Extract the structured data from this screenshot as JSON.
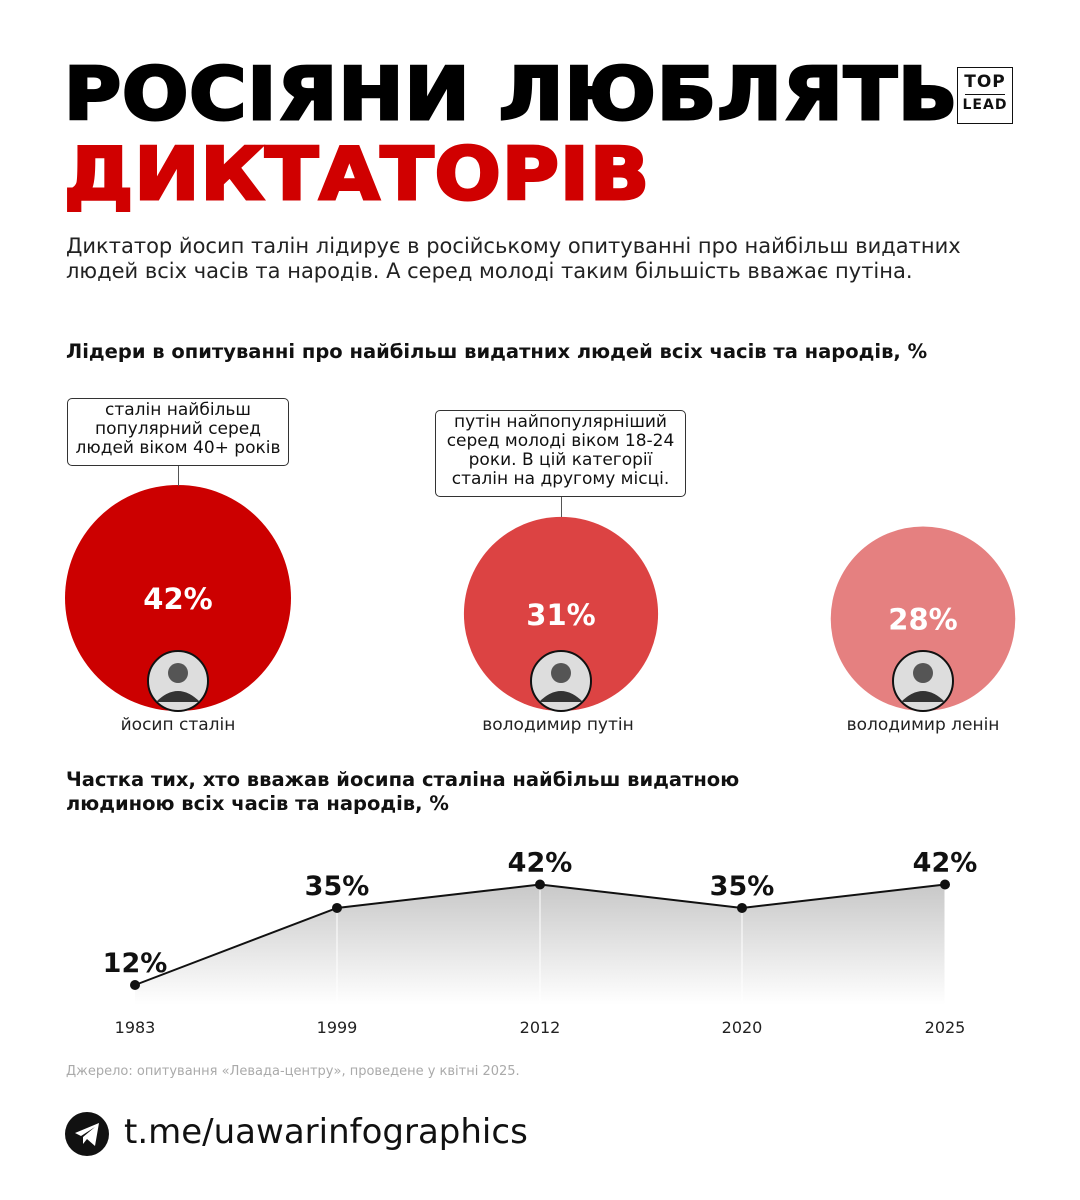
{
  "header": {
    "title_line1": "РОСІЯНИ ЛЮБЛЯТЬ",
    "title_line2": "ДИКТАТОРІВ",
    "logo_top": "TOP",
    "logo_bottom": "LEAD"
  },
  "intro": "Диктатор йосип  талін лідирує в російському опитуванні про найбільш видатних людей всіх часів та народів. А серед молоді таким більшість вважає путіна.",
  "colors": {
    "accent": "#d00000",
    "stalin": "#cc0000",
    "putin": "#dc4343",
    "lenin": "#e58080",
    "area_top": "#c8c8c8"
  },
  "chart_data": [
    {
      "type": "bubble",
      "title": "Лідери в опитуванні про найбільш видатних людей всіх часів та народів, %",
      "categories": [
        "йосип сталін",
        "володимир путін",
        "володимир ленін"
      ],
      "values": [
        42,
        31,
        28
      ],
      "labels": [
        "42%",
        "31%",
        "28%"
      ],
      "annotations": [
        {
          "target": "йосип сталін",
          "text": "сталін найбільш популярний серед людей віком 40+ років"
        },
        {
          "target": "володимир путін",
          "text": "путін найпопулярніший серед молоді віком 18-24 роки. В цій категорії сталін на другому місці."
        }
      ]
    },
    {
      "type": "area",
      "title": "Частка тих, хто вважав йосипа сталіна найбільш видатною людиною всіх часів та народів, %",
      "x": [
        "1983",
        "1999",
        "2012",
        "2020",
        "2025"
      ],
      "values": [
        12,
        35,
        42,
        35,
        42
      ],
      "labels": [
        "12%",
        "35%",
        "42%",
        "35%",
        "42%"
      ],
      "grid": false
    }
  ],
  "source": "Джерело: опитування «Левада-центру», проведене у квітні 2025.",
  "footer": {
    "icon": "telegram-icon",
    "link": "t.me/uawarinfographics"
  }
}
